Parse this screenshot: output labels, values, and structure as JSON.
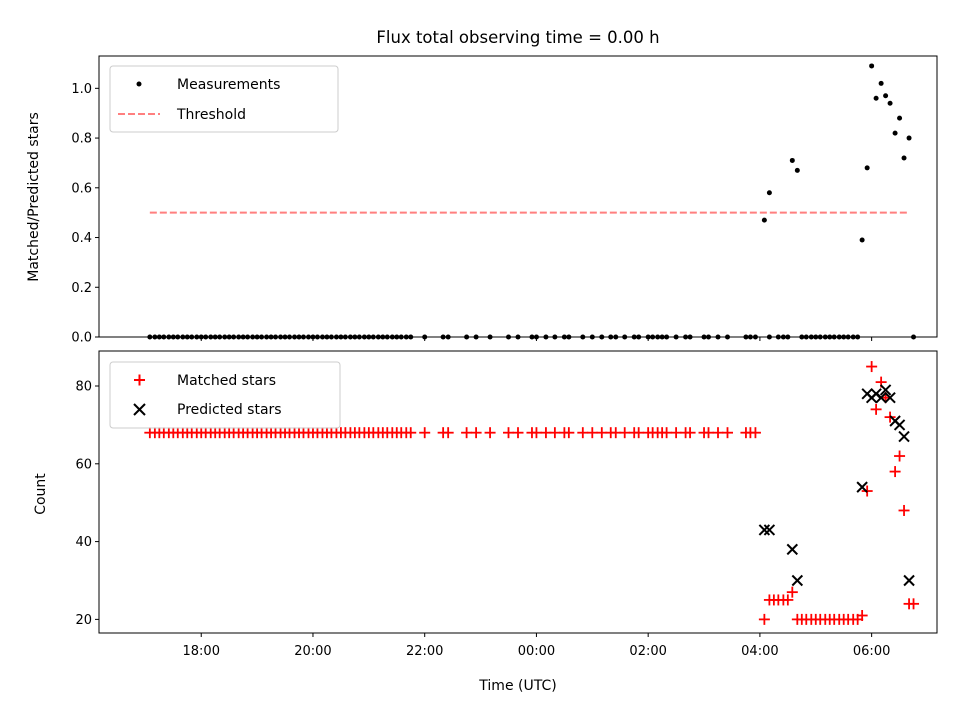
{
  "chart_data": [
    {
      "type": "scatter",
      "title": "Flux total observing time = 0.00 h",
      "xlabel": "",
      "ylabel": "Matched/Predicted stars",
      "ylim": [
        0.0,
        1.13
      ],
      "yticks": [
        "0.0",
        "0.2",
        "0.4",
        "0.6",
        "0.8",
        "1.0"
      ],
      "legend_position": "upper-left",
      "series": [
        {
          "name": "Measurements",
          "marker": "dot",
          "color": "#000000",
          "points": [
            [
              17.08,
              0
            ],
            [
              17.17,
              0
            ],
            [
              17.25,
              0
            ],
            [
              17.33,
              0
            ],
            [
              17.42,
              0
            ],
            [
              17.5,
              0
            ],
            [
              17.58,
              0
            ],
            [
              17.67,
              0
            ],
            [
              17.75,
              0
            ],
            [
              17.83,
              0
            ],
            [
              17.92,
              0
            ],
            [
              18.0,
              0
            ],
            [
              18.08,
              0
            ],
            [
              18.17,
              0
            ],
            [
              18.25,
              0
            ],
            [
              18.33,
              0
            ],
            [
              18.42,
              0
            ],
            [
              18.5,
              0
            ],
            [
              18.58,
              0
            ],
            [
              18.67,
              0
            ],
            [
              18.75,
              0
            ],
            [
              18.83,
              0
            ],
            [
              18.92,
              0
            ],
            [
              19.0,
              0
            ],
            [
              19.08,
              0
            ],
            [
              19.17,
              0
            ],
            [
              19.25,
              0
            ],
            [
              19.33,
              0
            ],
            [
              19.42,
              0
            ],
            [
              19.5,
              0
            ],
            [
              19.58,
              0
            ],
            [
              19.67,
              0
            ],
            [
              19.75,
              0
            ],
            [
              19.83,
              0
            ],
            [
              19.92,
              0
            ],
            [
              20.0,
              0
            ],
            [
              20.08,
              0
            ],
            [
              20.17,
              0
            ],
            [
              20.25,
              0
            ],
            [
              20.33,
              0
            ],
            [
              20.42,
              0
            ],
            [
              20.5,
              0
            ],
            [
              20.58,
              0
            ],
            [
              20.67,
              0
            ],
            [
              20.75,
              0
            ],
            [
              20.83,
              0
            ],
            [
              20.92,
              0
            ],
            [
              21.0,
              0
            ],
            [
              21.08,
              0
            ],
            [
              21.17,
              0
            ],
            [
              21.25,
              0
            ],
            [
              21.33,
              0
            ],
            [
              21.42,
              0
            ],
            [
              21.5,
              0
            ],
            [
              21.58,
              0
            ],
            [
              21.67,
              0
            ],
            [
              21.75,
              0
            ],
            [
              22.0,
              0
            ],
            [
              22.33,
              0
            ],
            [
              22.42,
              0
            ],
            [
              22.75,
              0
            ],
            [
              22.92,
              0
            ],
            [
              23.17,
              0
            ],
            [
              23.5,
              0
            ],
            [
              23.67,
              0
            ],
            [
              23.92,
              0
            ],
            [
              24.0,
              0
            ],
            [
              24.17,
              0
            ],
            [
              24.33,
              0
            ],
            [
              24.5,
              0
            ],
            [
              24.58,
              0
            ],
            [
              24.83,
              0
            ],
            [
              25.0,
              0
            ],
            [
              25.17,
              0
            ],
            [
              25.33,
              0
            ],
            [
              25.42,
              0
            ],
            [
              25.58,
              0
            ],
            [
              25.75,
              0
            ],
            [
              25.83,
              0
            ],
            [
              26.0,
              0
            ],
            [
              26.08,
              0
            ],
            [
              26.17,
              0
            ],
            [
              26.25,
              0
            ],
            [
              26.33,
              0
            ],
            [
              26.5,
              0
            ],
            [
              26.67,
              0
            ],
            [
              26.75,
              0
            ],
            [
              27.0,
              0
            ],
            [
              27.08,
              0
            ],
            [
              27.25,
              0
            ],
            [
              27.42,
              0
            ],
            [
              27.75,
              0
            ],
            [
              27.83,
              0
            ],
            [
              27.92,
              0
            ],
            [
              28.08,
              0.47
            ],
            [
              28.17,
              0.58
            ],
            [
              28.17,
              0
            ],
            [
              28.33,
              0
            ],
            [
              28.42,
              0
            ],
            [
              28.5,
              0
            ],
            [
              28.58,
              0.71
            ],
            [
              28.67,
              0.67
            ],
            [
              28.75,
              0
            ],
            [
              28.83,
              0
            ],
            [
              28.92,
              0
            ],
            [
              29.0,
              0
            ],
            [
              29.08,
              0
            ],
            [
              29.17,
              0
            ],
            [
              29.25,
              0
            ],
            [
              29.33,
              0
            ],
            [
              29.42,
              0
            ],
            [
              29.5,
              0
            ],
            [
              29.58,
              0
            ],
            [
              29.67,
              0
            ],
            [
              29.75,
              0
            ],
            [
              29.83,
              0.39
            ],
            [
              29.92,
              0.68
            ],
            [
              30.0,
              1.09
            ],
            [
              30.08,
              0.96
            ],
            [
              30.17,
              1.02
            ],
            [
              30.25,
              0.97
            ],
            [
              30.33,
              0.94
            ],
            [
              30.42,
              0.82
            ],
            [
              30.5,
              0.88
            ],
            [
              30.58,
              0.72
            ],
            [
              30.67,
              0.8
            ],
            [
              30.75,
              0
            ]
          ]
        },
        {
          "name": "Threshold",
          "marker": "dashed-line",
          "color": "#ff7f7f",
          "points": [
            [
              17.08,
              0.5
            ],
            [
              30.67,
              0.5
            ]
          ]
        }
      ]
    },
    {
      "type": "scatter",
      "title": "",
      "xlabel": "Time (UTC)",
      "ylabel": "Count",
      "ylim": [
        16.5,
        89
      ],
      "yticks": [
        "20",
        "40",
        "60",
        "80"
      ],
      "xlim": [
        16.17,
        31.17
      ],
      "xticks": [
        "18:00",
        "20:00",
        "22:00",
        "00:00",
        "02:00",
        "04:00",
        "06:00"
      ],
      "legend_position": "upper-left",
      "series": [
        {
          "name": "Matched stars",
          "marker": "plus",
          "color": "#ff0000",
          "points": [
            [
              17.08,
              68
            ],
            [
              17.17,
              68
            ],
            [
              17.25,
              68
            ],
            [
              17.33,
              68
            ],
            [
              17.42,
              68
            ],
            [
              17.5,
              68
            ],
            [
              17.58,
              68
            ],
            [
              17.67,
              68
            ],
            [
              17.75,
              68
            ],
            [
              17.83,
              68
            ],
            [
              17.92,
              68
            ],
            [
              18.0,
              68
            ],
            [
              18.08,
              68
            ],
            [
              18.17,
              68
            ],
            [
              18.25,
              68
            ],
            [
              18.33,
              68
            ],
            [
              18.42,
              68
            ],
            [
              18.5,
              68
            ],
            [
              18.58,
              68
            ],
            [
              18.67,
              68
            ],
            [
              18.75,
              68
            ],
            [
              18.83,
              68
            ],
            [
              18.92,
              68
            ],
            [
              19.0,
              68
            ],
            [
              19.08,
              68
            ],
            [
              19.17,
              68
            ],
            [
              19.25,
              68
            ],
            [
              19.33,
              68
            ],
            [
              19.42,
              68
            ],
            [
              19.5,
              68
            ],
            [
              19.58,
              68
            ],
            [
              19.67,
              68
            ],
            [
              19.75,
              68
            ],
            [
              19.83,
              68
            ],
            [
              19.92,
              68
            ],
            [
              20.0,
              68
            ],
            [
              20.08,
              68
            ],
            [
              20.17,
              68
            ],
            [
              20.25,
              68
            ],
            [
              20.33,
              68
            ],
            [
              20.42,
              68
            ],
            [
              20.5,
              68
            ],
            [
              20.58,
              68
            ],
            [
              20.67,
              68
            ],
            [
              20.75,
              68
            ],
            [
              20.83,
              68
            ],
            [
              20.92,
              68
            ],
            [
              21.0,
              68
            ],
            [
              21.08,
              68
            ],
            [
              21.17,
              68
            ],
            [
              21.25,
              68
            ],
            [
              21.33,
              68
            ],
            [
              21.42,
              68
            ],
            [
              21.5,
              68
            ],
            [
              21.58,
              68
            ],
            [
              21.67,
              68
            ],
            [
              21.75,
              68
            ],
            [
              22.0,
              68
            ],
            [
              22.33,
              68
            ],
            [
              22.42,
              68
            ],
            [
              22.75,
              68
            ],
            [
              22.92,
              68
            ],
            [
              23.17,
              68
            ],
            [
              23.5,
              68
            ],
            [
              23.67,
              68
            ],
            [
              23.92,
              68
            ],
            [
              24.0,
              68
            ],
            [
              24.17,
              68
            ],
            [
              24.33,
              68
            ],
            [
              24.5,
              68
            ],
            [
              24.58,
              68
            ],
            [
              24.83,
              68
            ],
            [
              25.0,
              68
            ],
            [
              25.17,
              68
            ],
            [
              25.33,
              68
            ],
            [
              25.42,
              68
            ],
            [
              25.58,
              68
            ],
            [
              25.75,
              68
            ],
            [
              25.83,
              68
            ],
            [
              26.0,
              68
            ],
            [
              26.08,
              68
            ],
            [
              26.17,
              68
            ],
            [
              26.25,
              68
            ],
            [
              26.33,
              68
            ],
            [
              26.5,
              68
            ],
            [
              26.67,
              68
            ],
            [
              26.75,
              68
            ],
            [
              27.0,
              68
            ],
            [
              27.08,
              68
            ],
            [
              27.25,
              68
            ],
            [
              27.42,
              68
            ],
            [
              27.75,
              68
            ],
            [
              27.83,
              68
            ],
            [
              27.92,
              68
            ],
            [
              28.08,
              20
            ],
            [
              28.17,
              25
            ],
            [
              28.25,
              25
            ],
            [
              28.33,
              25
            ],
            [
              28.42,
              25
            ],
            [
              28.5,
              25
            ],
            [
              28.58,
              27
            ],
            [
              28.67,
              20
            ],
            [
              28.75,
              20
            ],
            [
              28.83,
              20
            ],
            [
              28.92,
              20
            ],
            [
              29.0,
              20
            ],
            [
              29.08,
              20
            ],
            [
              29.17,
              20
            ],
            [
              29.25,
              20
            ],
            [
              29.33,
              20
            ],
            [
              29.42,
              20
            ],
            [
              29.5,
              20
            ],
            [
              29.58,
              20
            ],
            [
              29.67,
              20
            ],
            [
              29.75,
              20
            ],
            [
              29.83,
              21
            ],
            [
              29.92,
              53
            ],
            [
              30.0,
              85
            ],
            [
              30.08,
              74
            ],
            [
              30.17,
              81
            ],
            [
              30.25,
              77
            ],
            [
              30.33,
              72
            ],
            [
              30.42,
              58
            ],
            [
              30.5,
              62
            ],
            [
              30.58,
              48
            ],
            [
              30.67,
              24
            ],
            [
              30.75,
              24
            ]
          ]
        },
        {
          "name": "Predicted stars",
          "marker": "x",
          "color": "#000000",
          "points": [
            [
              28.08,
              43
            ],
            [
              28.17,
              43
            ],
            [
              28.58,
              38
            ],
            [
              28.67,
              30
            ],
            [
              29.83,
              54
            ],
            [
              29.92,
              78
            ],
            [
              30.0,
              77
            ],
            [
              30.08,
              78
            ],
            [
              30.17,
              77
            ],
            [
              30.25,
              79
            ],
            [
              30.33,
              77
            ],
            [
              30.42,
              71
            ],
            [
              30.5,
              70
            ],
            [
              30.58,
              67
            ],
            [
              30.67,
              30
            ]
          ]
        }
      ]
    }
  ]
}
